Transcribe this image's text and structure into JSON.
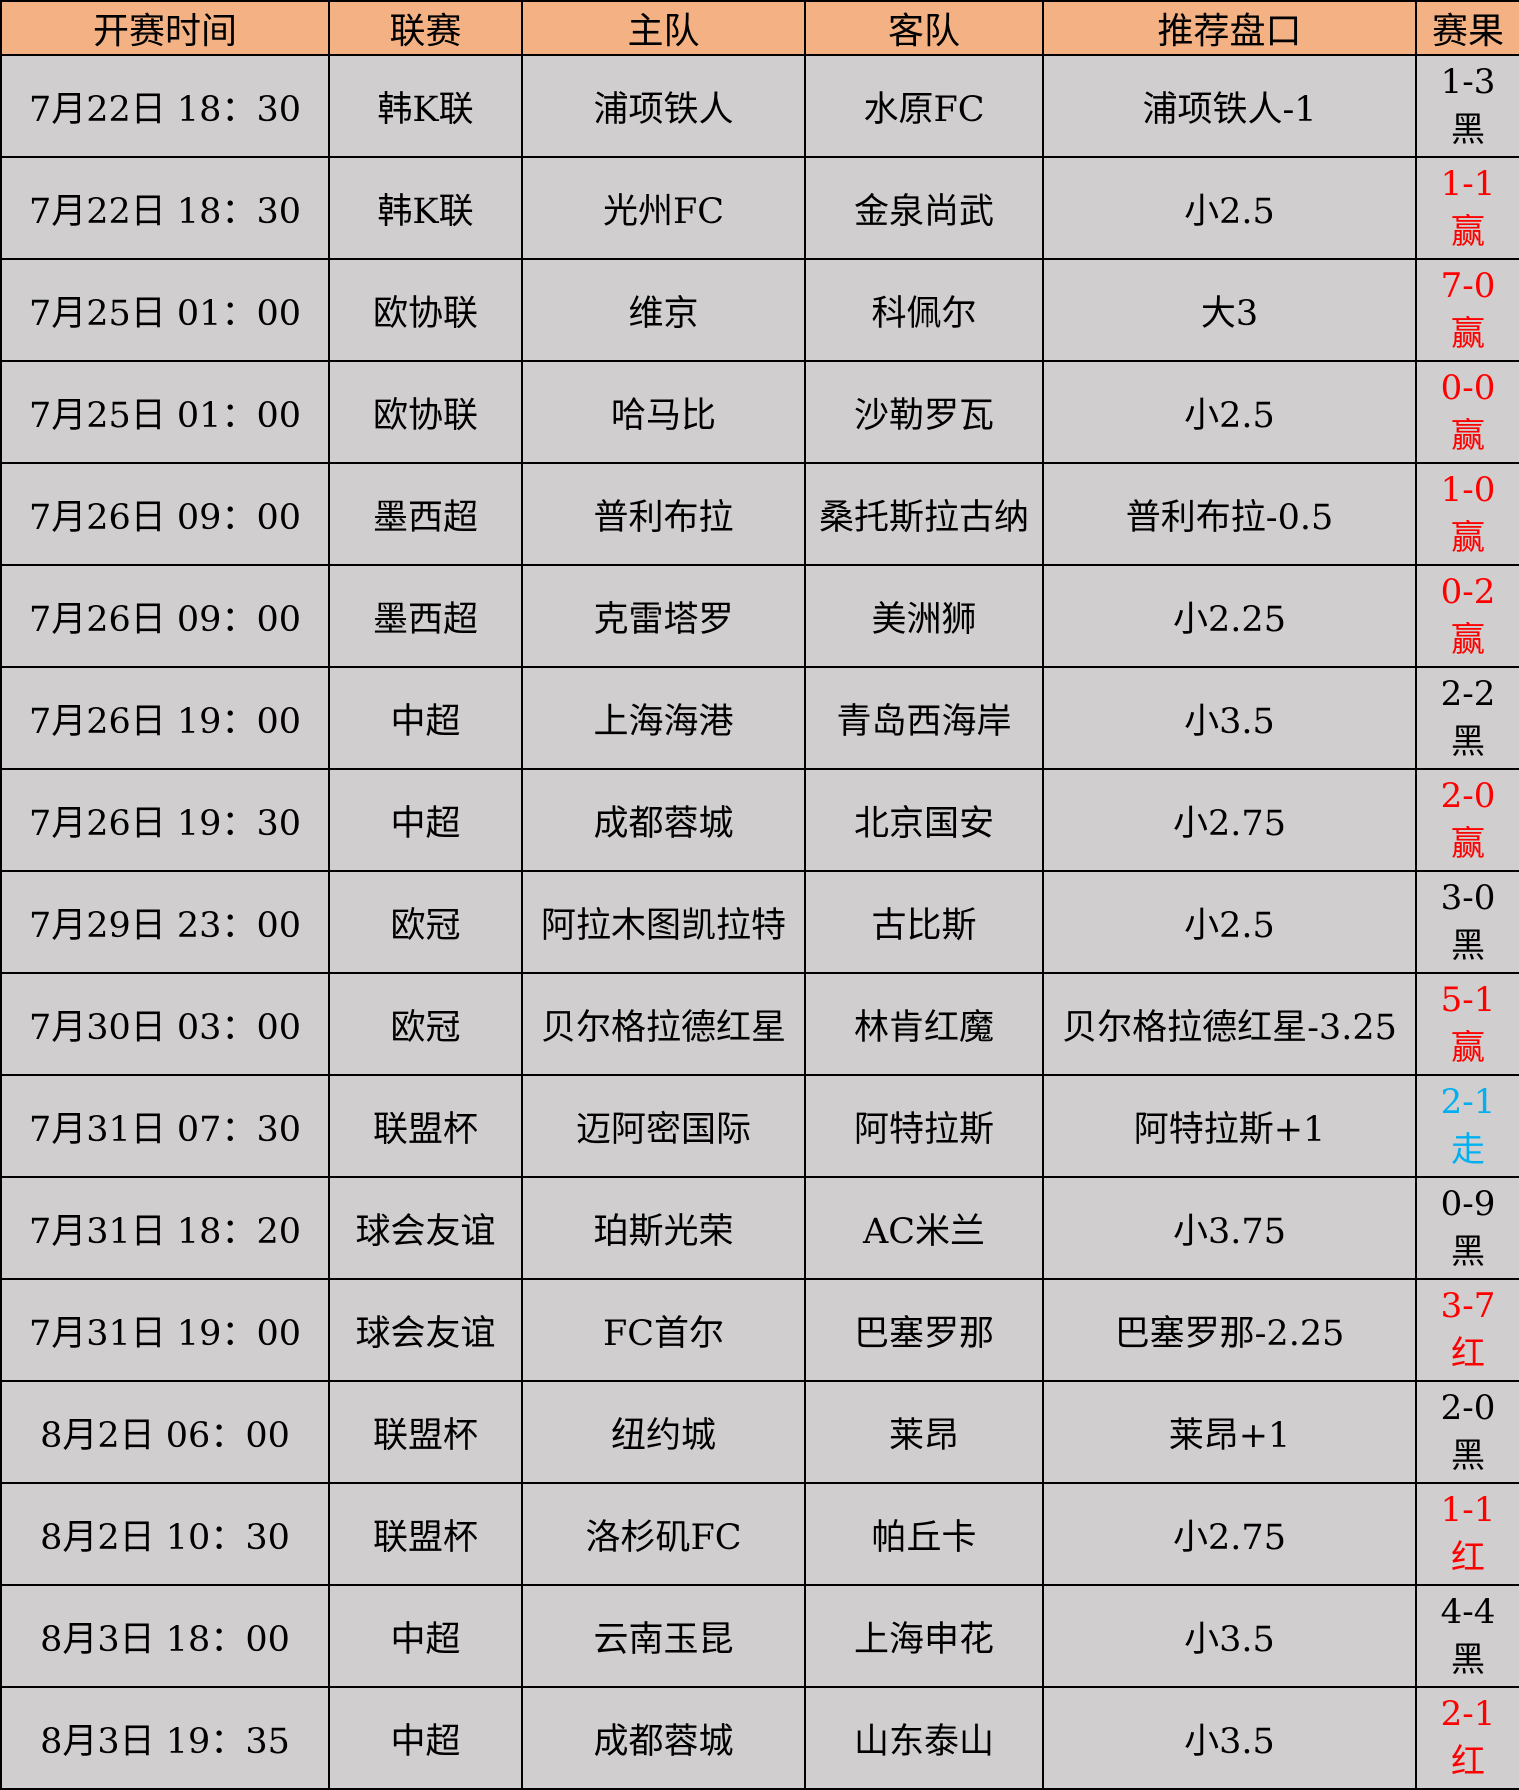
{
  "colors": {
    "header_bg": "#F4B183",
    "cell_bg": "#D0CECE",
    "win": "#FF0000",
    "push": "#00B0F0",
    "loss": "#000000"
  },
  "headers": [
    "开赛时间",
    "联赛",
    "主队",
    "客队",
    "推荐盘口",
    "赛果"
  ],
  "rows": [
    {
      "time": "7月22日 18：30",
      "league": "韩K联",
      "home": "浦项铁人",
      "away": "水原FC",
      "pick": "浦项铁人-1",
      "score": "1-3",
      "result": "黑",
      "status": "loss"
    },
    {
      "time": "7月22日 18：30",
      "league": "韩K联",
      "home": "光州FC",
      "away": "金泉尚武",
      "pick": "小2.5",
      "score": "1-1",
      "result": "赢",
      "status": "win"
    },
    {
      "time": "7月25日 01：00",
      "league": "欧协联",
      "home": "维京",
      "away": "科佩尔",
      "pick": "大3",
      "score": "7-0",
      "result": "赢",
      "status": "win"
    },
    {
      "time": "7月25日 01：00",
      "league": "欧协联",
      "home": "哈马比",
      "away": "沙勒罗瓦",
      "pick": "小2.5",
      "score": "0-0",
      "result": "赢",
      "status": "win"
    },
    {
      "time": "7月26日 09：00",
      "league": "墨西超",
      "home": "普利布拉",
      "away": "桑托斯拉古纳",
      "pick": "普利布拉-0.5",
      "score": "1-0",
      "result": "赢",
      "status": "win"
    },
    {
      "time": "7月26日 09：00",
      "league": "墨西超",
      "home": "克雷塔罗",
      "away": "美洲狮",
      "pick": "小2.25",
      "score": "0-2",
      "result": "赢",
      "status": "win"
    },
    {
      "time": "7月26日 19：00",
      "league": "中超",
      "home": "上海海港",
      "away": "青岛西海岸",
      "pick": "小3.5",
      "score": "2-2",
      "result": "黑",
      "status": "loss"
    },
    {
      "time": "7月26日 19：30",
      "league": "中超",
      "home": "成都蓉城",
      "away": "北京国安",
      "pick": "小2.75",
      "score": "2-0",
      "result": "赢",
      "status": "win"
    },
    {
      "time": "7月29日 23：00",
      "league": "欧冠",
      "home": "阿拉木图凯拉特",
      "away": "古比斯",
      "pick": "小2.5",
      "score": "3-0",
      "result": "黑",
      "status": "loss"
    },
    {
      "time": "7月30日 03：00",
      "league": "欧冠",
      "home": "贝尔格拉德红星",
      "away": "林肯红魔",
      "pick": "贝尔格拉德红星-3.25",
      "score": "5-1",
      "result": "赢",
      "status": "win"
    },
    {
      "time": "7月31日 07：30",
      "league": "联盟杯",
      "home": "迈阿密国际",
      "away": "阿特拉斯",
      "pick": "阿特拉斯+1",
      "score": "2-1",
      "result": "走",
      "status": "push"
    },
    {
      "time": "7月31日 18：20",
      "league": "球会友谊",
      "home": "珀斯光荣",
      "away": "AC米兰",
      "pick": "小3.75",
      "score": "0-9",
      "result": "黑",
      "status": "loss"
    },
    {
      "time": "7月31日 19：00",
      "league": "球会友谊",
      "home": "FC首尔",
      "away": "巴塞罗那",
      "pick": "巴塞罗那-2.25",
      "score": "3-7",
      "result": "红",
      "status": "win"
    },
    {
      "time": "8月2日 06：00",
      "league": "联盟杯",
      "home": "纽约城",
      "away": "莱昂",
      "pick": "莱昂+1",
      "score": "2-0",
      "result": "黑",
      "status": "loss"
    },
    {
      "time": "8月2日 10：30",
      "league": "联盟杯",
      "home": "洛杉矶FC",
      "away": "帕丘卡",
      "pick": "小2.75",
      "score": "1-1",
      "result": "红",
      "status": "win"
    },
    {
      "time": "8月3日 18：00",
      "league": "中超",
      "home": "云南玉昆",
      "away": "上海申花",
      "pick": "小3.5",
      "score": "4-4",
      "result": "黑",
      "status": "loss"
    },
    {
      "time": "8月3日 19：35",
      "league": "中超",
      "home": "成都蓉城",
      "away": "山东泰山",
      "pick": "小3.5",
      "score": "2-1",
      "result": "红",
      "status": "win"
    }
  ]
}
